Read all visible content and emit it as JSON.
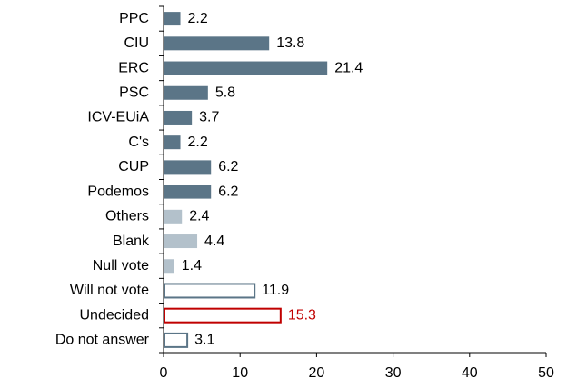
{
  "chart_data": {
    "type": "barh",
    "categories": [
      "PPC",
      "CIU",
      "ERC",
      "PSC",
      "ICV-EUiA",
      "C's",
      "CUP",
      "Podemos",
      "Others",
      "Blank",
      "Null vote",
      "Will not vote",
      "Undecided",
      "Do not answer"
    ],
    "values": [
      2.2,
      13.8,
      21.4,
      5.8,
      3.7,
      2.2,
      6.2,
      6.2,
      2.4,
      4.4,
      1.4,
      11.9,
      15.3,
      3.1
    ],
    "colors": [
      "#5b7587",
      "#5b7587",
      "#5b7587",
      "#5b7587",
      "#5b7587",
      "#5b7587",
      "#5b7587",
      "#5b7587",
      "#b3c1cb",
      "#b3c1cb",
      "#b3c1cb",
      "#5b7587",
      "#c00000",
      "#5b7587"
    ],
    "styles": [
      "solid",
      "solid",
      "solid",
      "solid",
      "solid",
      "solid",
      "solid",
      "solid",
      "solid",
      "solid",
      "solid",
      "outline",
      "outline",
      "outline"
    ],
    "label_colors": [
      "#000000",
      "#000000",
      "#000000",
      "#000000",
      "#000000",
      "#000000",
      "#000000",
      "#000000",
      "#000000",
      "#000000",
      "#000000",
      "#000000",
      "#c00000",
      "#000000"
    ],
    "xlim": [
      0,
      50
    ],
    "xticks": [
      0,
      10,
      20,
      30,
      40,
      50
    ]
  }
}
